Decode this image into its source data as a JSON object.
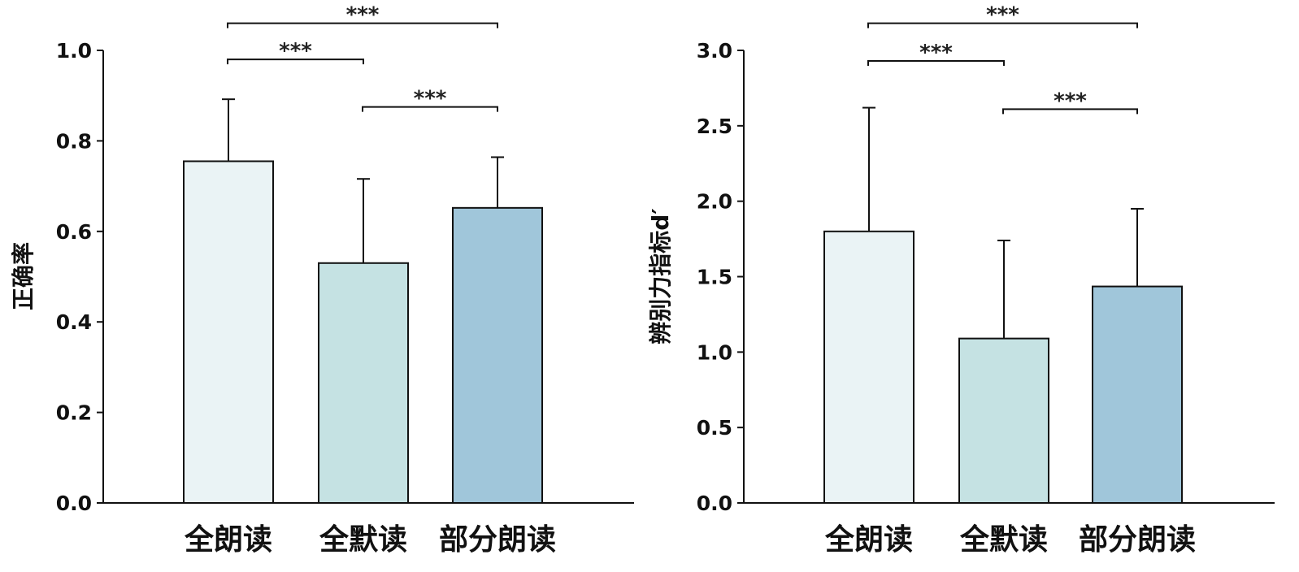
{
  "chart_data": [
    {
      "type": "bar",
      "categories": [
        "全朗读",
        "全默读",
        "部分朗读"
      ],
      "values": [
        0.755,
        0.53,
        0.652
      ],
      "errors": [
        0.137,
        0.186,
        0.112
      ],
      "ylabel": "正确率",
      "ylim": [
        0,
        1.0
      ],
      "yticks": [
        "0.0",
        "0.2",
        "0.4",
        "0.6",
        "0.8",
        "1.0"
      ],
      "ytick_values": [
        0,
        0.2,
        0.4,
        0.6,
        0.8,
        1.0
      ],
      "colors": [
        "#eaf3f5",
        "#c5e2e3",
        "#a0c6da"
      ],
      "significance": [
        {
          "from": 0,
          "to": 2,
          "label": "***",
          "level": 1.06
        },
        {
          "from": 0,
          "to": 1,
          "label": "***",
          "level": 0.98
        },
        {
          "from": 1,
          "to": 2,
          "label": "***",
          "level": 0.875
        }
      ]
    },
    {
      "type": "bar",
      "categories": [
        "全朗读",
        "全默读",
        "部分朗读"
      ],
      "values": [
        1.8,
        1.09,
        1.435
      ],
      "errors": [
        0.82,
        0.65,
        0.515
      ],
      "ylabel": "辨别力指标d′",
      "ylim": [
        0,
        3.0
      ],
      "yticks": [
        "0.0",
        "0.5",
        "1.0",
        "1.5",
        "2.0",
        "2.5",
        "3.0"
      ],
      "ytick_values": [
        0,
        0.5,
        1.0,
        1.5,
        2.0,
        2.5,
        3.0
      ],
      "colors": [
        "#eaf3f5",
        "#c5e2e3",
        "#a0c6da"
      ],
      "significance": [
        {
          "from": 0,
          "to": 2,
          "label": "***",
          "level": 3.18
        },
        {
          "from": 0,
          "to": 1,
          "label": "***",
          "level": 2.93
        },
        {
          "from": 1,
          "to": 2,
          "label": "***",
          "level": 2.61
        }
      ]
    }
  ]
}
